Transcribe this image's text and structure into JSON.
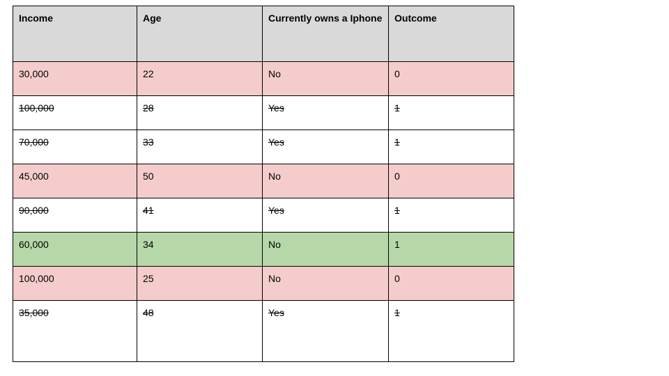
{
  "table": {
    "headers": [
      "Income",
      "Age",
      "Currently owns a Iphone",
      "Outcome"
    ],
    "rows": [
      {
        "cells": [
          "30,000",
          "22",
          "No",
          "0"
        ],
        "bg": "#f4cccc",
        "strike": false
      },
      {
        "cells": [
          "100,000",
          "28",
          "Yes",
          "1"
        ],
        "bg": "#ffffff",
        "strike": true
      },
      {
        "cells": [
          "70,000",
          "33",
          "Yes",
          "1"
        ],
        "bg": "#ffffff",
        "strike": true
      },
      {
        "cells": [
          "45,000",
          "50",
          "No",
          "0"
        ],
        "bg": "#f4cccc",
        "strike": false
      },
      {
        "cells": [
          "90,000",
          "41",
          "Yes",
          "1"
        ],
        "bg": "#ffffff",
        "strike": true
      },
      {
        "cells": [
          "60,000",
          "34",
          "No",
          "1"
        ],
        "bg": "#b6d7a8",
        "strike": false
      },
      {
        "cells": [
          "100,000",
          "25",
          "No",
          "0"
        ],
        "bg": "#f4cccc",
        "strike": false
      },
      {
        "cells": [
          "35,000",
          "48",
          "Yes",
          "1"
        ],
        "bg": "#ffffff",
        "strike": true
      }
    ],
    "colors": {
      "header_bg": "#d9d9d9",
      "negative_bg": "#f4cccc",
      "positive_bg": "#b6d7a8",
      "border": "#000000",
      "text": "#000000"
    }
  }
}
